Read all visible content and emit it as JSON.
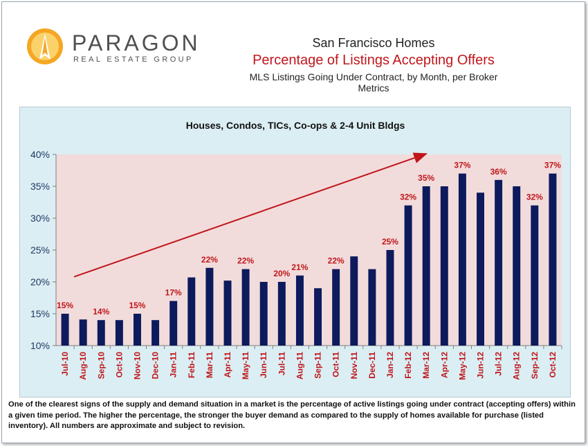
{
  "logo": {
    "name": "PARAGON",
    "tagline": "REAL ESTATE GROUP"
  },
  "header": {
    "title": "San Francisco Homes",
    "subtitle": "Percentage of Listings Accepting Offers",
    "caption": "MLS Listings Going Under Contract, by Month, per Broker Metrics"
  },
  "chart_data": {
    "type": "bar",
    "title": "Houses, Condos, TICs, Co-ops & 2-4 Unit Bldgs",
    "xlabel": "",
    "ylabel": "",
    "ylim": [
      10,
      40
    ],
    "yticks": [
      "10%",
      "15%",
      "20%",
      "25%",
      "30%",
      "35%",
      "40%"
    ],
    "grid": false,
    "categories": [
      "Jul-10",
      "Aug-10",
      "Sep-10",
      "Oct-10",
      "Nov-10",
      "Dec-10",
      "Jan-11",
      "Feb-11",
      "Mar-11",
      "Apr-11",
      "May-11",
      "Jun-11",
      "Jul-11",
      "Aug-11",
      "Sep-11",
      "Oct-11",
      "Nov-11",
      "Dec-11",
      "Jan-12",
      "Feb-12",
      "Mar-12",
      "Apr-12",
      "May-12",
      "Jun-12",
      "Jul-12",
      "Aug-12",
      "Sep-12",
      "Oct-12"
    ],
    "values": [
      15,
      14.1,
      14,
      14,
      15,
      14,
      17,
      20.7,
      22.2,
      20.2,
      22,
      20,
      20,
      21,
      19,
      22,
      24,
      22,
      25,
      32,
      35,
      35,
      37,
      34,
      36,
      35,
      32,
      37
    ],
    "data_labels": [
      "15%",
      "",
      "14%",
      "",
      "15%",
      "",
      "17%",
      "",
      "22%",
      "",
      "22%",
      "",
      "20%",
      "21%",
      "",
      "22%",
      "",
      "",
      "25%",
      "32%",
      "35%",
      "",
      "37%",
      "",
      "36%",
      "",
      "32%",
      "37%"
    ],
    "colors": {
      "bar": "#0d1a5c",
      "plot_bg": "#f2dcdb",
      "outer_bg": "#dbeef3",
      "label": "#c0161b",
      "axis": "#1f3864",
      "arrow": "#c0161b"
    },
    "annotation": "trend-arrow"
  },
  "footnote": "One of the clearest signs of the supply and demand situation in a market is the percentage of active listings going under contract (accepting offers) within a given time period. The higher the percentage, the stronger the buyer demand as compared to the supply of homes available for purchase (listed inventory). All numbers are approximate and subject to revision."
}
